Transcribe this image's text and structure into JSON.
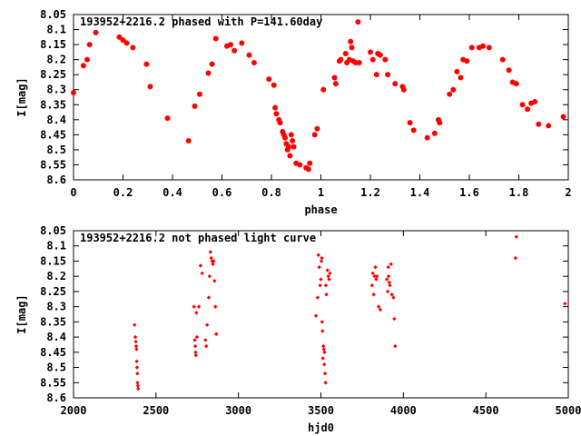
{
  "chart_data": [
    {
      "type": "scatter",
      "title": "193952+2216.2 phased with P=141.60day",
      "xlabel": "phase",
      "ylabel": "I[mag]",
      "xlim": [
        0,
        2
      ],
      "ylim": [
        8.6,
        8.05
      ],
      "y_inverted": true,
      "x_ticks": [
        0,
        0.2,
        0.4,
        0.6,
        0.8,
        1,
        1.2,
        1.4,
        1.6,
        1.8,
        2
      ],
      "x_tick_labels": [
        "0",
        "0.2",
        "0.4",
        "0.6",
        "0.8",
        "1",
        "1.2",
        "1.4",
        "1.6",
        "1.8",
        "2"
      ],
      "y_ticks": [
        8.05,
        8.1,
        8.15,
        8.2,
        8.25,
        8.3,
        8.35,
        8.4,
        8.45,
        8.5,
        8.55,
        8.6
      ],
      "y_tick_labels": [
        "8.05",
        "8.1",
        "8.15",
        "8.2",
        "8.25",
        "8.3",
        "8.35",
        "8.4",
        "8.45",
        "8.5",
        "8.55",
        "8.6"
      ],
      "grid": false,
      "legend": "none",
      "marker": "filled-circle",
      "color": "#ff0000",
      "points": [
        [
          0.0,
          8.31
        ],
        [
          0.04,
          8.22
        ],
        [
          0.055,
          8.2
        ],
        [
          0.065,
          8.15
        ],
        [
          0.09,
          8.11
        ],
        [
          0.185,
          8.125
        ],
        [
          0.2,
          8.135
        ],
        [
          0.215,
          8.145
        ],
        [
          0.24,
          8.16
        ],
        [
          0.295,
          8.215
        ],
        [
          0.31,
          8.29
        ],
        [
          0.38,
          8.395
        ],
        [
          0.465,
          8.47
        ],
        [
          0.49,
          8.355
        ],
        [
          0.51,
          8.315
        ],
        [
          0.545,
          8.245
        ],
        [
          0.56,
          8.215
        ],
        [
          0.575,
          8.13
        ],
        [
          0.62,
          8.155
        ],
        [
          0.635,
          8.15
        ],
        [
          0.65,
          8.17
        ],
        [
          0.68,
          8.145
        ],
        [
          0.71,
          8.185
        ],
        [
          0.73,
          8.21
        ],
        [
          0.79,
          8.265
        ],
        [
          0.81,
          8.285
        ],
        [
          0.815,
          8.36
        ],
        [
          0.82,
          8.38
        ],
        [
          0.83,
          8.4
        ],
        [
          0.835,
          8.41
        ],
        [
          0.845,
          8.44
        ],
        [
          0.85,
          8.45
        ],
        [
          0.855,
          8.46
        ],
        [
          0.86,
          8.48
        ],
        [
          0.865,
          8.5
        ],
        [
          0.87,
          8.49
        ],
        [
          0.875,
          8.52
        ],
        [
          0.88,
          8.45
        ],
        [
          0.885,
          8.47
        ],
        [
          0.89,
          8.49
        ],
        [
          0.9,
          8.545
        ],
        [
          0.915,
          8.55
        ],
        [
          0.94,
          8.56
        ],
        [
          0.95,
          8.565
        ],
        [
          0.955,
          8.545
        ],
        [
          0.975,
          8.45
        ],
        [
          0.985,
          8.43
        ],
        [
          1.01,
          8.3
        ],
        [
          1.055,
          8.26
        ],
        [
          1.06,
          8.28
        ],
        [
          1.075,
          8.205
        ],
        [
          1.08,
          8.2
        ],
        [
          1.1,
          8.18
        ],
        [
          1.105,
          8.21
        ],
        [
          1.115,
          8.2
        ],
        [
          1.12,
          8.14
        ],
        [
          1.125,
          8.16
        ],
        [
          1.13,
          8.205
        ],
        [
          1.14,
          8.21
        ],
        [
          1.15,
          8.075
        ],
        [
          1.155,
          8.21
        ],
        [
          1.2,
          8.175
        ],
        [
          1.21,
          8.2
        ],
        [
          1.225,
          8.25
        ],
        [
          1.23,
          8.18
        ],
        [
          1.24,
          8.185
        ],
        [
          1.26,
          8.2
        ],
        [
          1.27,
          8.25
        ],
        [
          1.3,
          8.28
        ],
        [
          1.33,
          8.29
        ],
        [
          1.335,
          8.3
        ],
        [
          1.36,
          8.41
        ],
        [
          1.375,
          8.435
        ],
        [
          1.43,
          8.46
        ],
        [
          1.46,
          8.445
        ],
        [
          1.475,
          8.4
        ],
        [
          1.48,
          8.41
        ],
        [
          1.52,
          8.315
        ],
        [
          1.535,
          8.3
        ],
        [
          1.55,
          8.24
        ],
        [
          1.565,
          8.26
        ],
        [
          1.575,
          8.2
        ],
        [
          1.59,
          8.205
        ],
        [
          1.61,
          8.16
        ],
        [
          1.64,
          8.16
        ],
        [
          1.655,
          8.155
        ],
        [
          1.68,
          8.16
        ],
        [
          1.735,
          8.2
        ],
        [
          1.76,
          8.235
        ],
        [
          1.775,
          8.275
        ],
        [
          1.79,
          8.28
        ],
        [
          1.815,
          8.35
        ],
        [
          1.835,
          8.365
        ],
        [
          1.85,
          8.345
        ],
        [
          1.865,
          8.34
        ],
        [
          1.88,
          8.415
        ],
        [
          1.92,
          8.42
        ],
        [
          1.98,
          8.39
        ]
      ]
    },
    {
      "type": "scatter",
      "title": "193952+2216.2 not phased light curve",
      "xlabel": "hjd0",
      "ylabel": "I[mag]",
      "xlim": [
        2000,
        5000
      ],
      "ylim": [
        8.6,
        8.05
      ],
      "y_inverted": true,
      "x_ticks": [
        2000,
        2500,
        3000,
        3500,
        4000,
        4500,
        5000
      ],
      "x_tick_labels": [
        "2000",
        "2500",
        "3000",
        "3500",
        "4000",
        "4500",
        "5000"
      ],
      "y_ticks": [
        8.05,
        8.1,
        8.15,
        8.2,
        8.25,
        8.3,
        8.35,
        8.4,
        8.45,
        8.5,
        8.55,
        8.6
      ],
      "y_tick_labels": [
        "8.05",
        "8.1",
        "8.15",
        "8.2",
        "8.25",
        "8.3",
        "8.35",
        "8.4",
        "8.45",
        "8.5",
        "8.55",
        "8.6"
      ],
      "grid": false,
      "legend": "none",
      "marker": "small-diamond",
      "color": "#ff0000",
      "points": [
        [
          2370,
          8.36
        ],
        [
          2375,
          8.4
        ],
        [
          2378,
          8.415
        ],
        [
          2380,
          8.43
        ],
        [
          2382,
          8.44
        ],
        [
          2383,
          8.48
        ],
        [
          2385,
          8.5
        ],
        [
          2387,
          8.52
        ],
        [
          2388,
          8.55
        ],
        [
          2390,
          8.56
        ],
        [
          2392,
          8.57
        ],
        [
          2730,
          8.3
        ],
        [
          2735,
          8.41
        ],
        [
          2738,
          8.43
        ],
        [
          2740,
          8.45
        ],
        [
          2742,
          8.46
        ],
        [
          2745,
          8.32
        ],
        [
          2748,
          8.4
        ],
        [
          2760,
          8.3
        ],
        [
          2770,
          8.165
        ],
        [
          2780,
          8.19
        ],
        [
          2800,
          8.41
        ],
        [
          2805,
          8.43
        ],
        [
          2810,
          8.36
        ],
        [
          2820,
          8.27
        ],
        [
          2825,
          8.2
        ],
        [
          2830,
          8.12
        ],
        [
          2835,
          8.14
        ],
        [
          2840,
          8.15
        ],
        [
          2845,
          8.16
        ],
        [
          2850,
          8.15
        ],
        [
          2855,
          8.215
        ],
        [
          2860,
          8.3
        ],
        [
          2865,
          8.39
        ],
        [
          3470,
          8.33
        ],
        [
          3480,
          8.27
        ],
        [
          3485,
          8.13
        ],
        [
          3490,
          8.17
        ],
        [
          3495,
          8.23
        ],
        [
          3500,
          8.21
        ],
        [
          3503,
          8.15
        ],
        [
          3505,
          8.14
        ],
        [
          3507,
          8.35
        ],
        [
          3510,
          8.38
        ],
        [
          3512,
          8.47
        ],
        [
          3515,
          8.43
        ],
        [
          3518,
          8.44
        ],
        [
          3520,
          8.49
        ],
        [
          3522,
          8.45
        ],
        [
          3525,
          8.52
        ],
        [
          3528,
          8.55
        ],
        [
          3530,
          8.23
        ],
        [
          3533,
          8.26
        ],
        [
          3540,
          8.18
        ],
        [
          3545,
          8.2
        ],
        [
          3550,
          8.21
        ],
        [
          3555,
          8.19
        ],
        [
          3810,
          8.23
        ],
        [
          3815,
          8.19
        ],
        [
          3820,
          8.26
        ],
        [
          3825,
          8.2
        ],
        [
          3830,
          8.17
        ],
        [
          3835,
          8.21
        ],
        [
          3840,
          8.2
        ],
        [
          3850,
          8.3
        ],
        [
          3860,
          8.31
        ],
        [
          3900,
          8.21
        ],
        [
          3905,
          8.25
        ],
        [
          3908,
          8.17
        ],
        [
          3910,
          8.2
        ],
        [
          3915,
          8.22
        ],
        [
          3918,
          8.23
        ],
        [
          3925,
          8.16
        ],
        [
          3930,
          8.26
        ],
        [
          3940,
          8.27
        ],
        [
          3945,
          8.34
        ],
        [
          3950,
          8.43
        ],
        [
          4680,
          8.14
        ],
        [
          4685,
          8.07
        ],
        [
          4980,
          8.29
        ]
      ]
    }
  ]
}
